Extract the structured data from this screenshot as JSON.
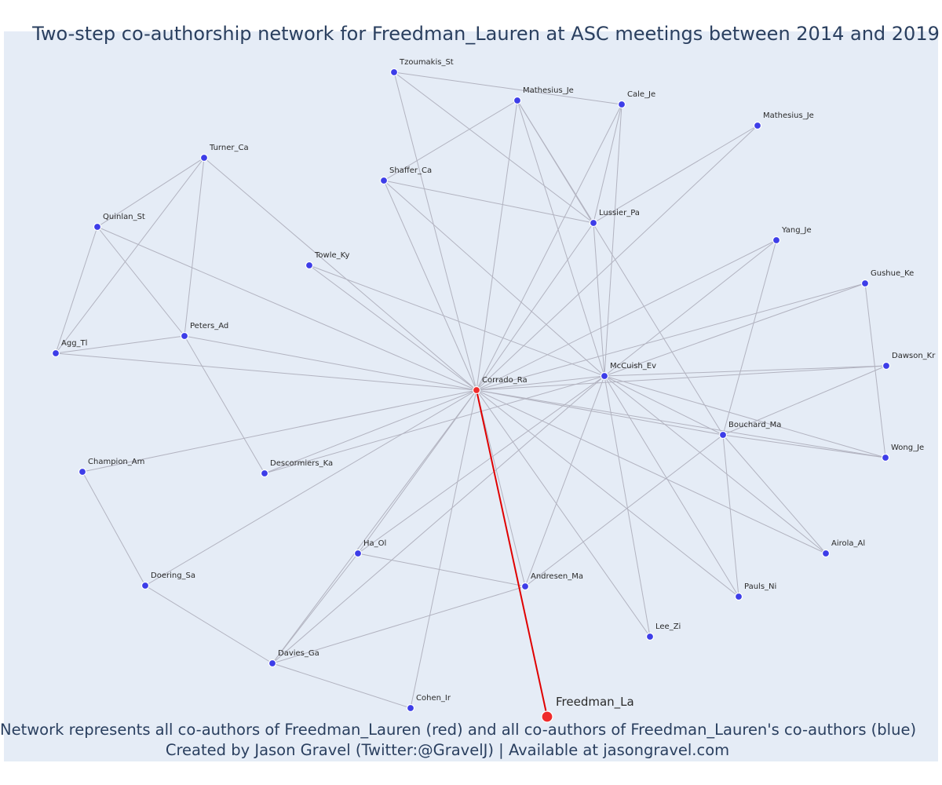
{
  "title": "Two-step co-authorship network for Freedman_Lauren at ASC meetings between 2014 and 2019",
  "caption_line1": "Network represents all co-authors of Freedman_Lauren (red) and all co-authors of Freedman_Lauren's co-authors (blue)",
  "caption_line2": "Created by Jason Gravel (Twitter:@GravelJ) | Available at jasongravel.com",
  "colors": {
    "background": "#e5ecf6",
    "edge": "#b2b3c0",
    "highlight_edge": "#e00000",
    "coauthor": "#ef2b2b",
    "second_step": "#3d3de8"
  },
  "legend": {
    "red": "co-authors of Freedman_Lauren",
    "blue": "co-authors of Freedman_Lauren's co-authors"
  },
  "nodes": [
    {
      "id": "Freedman_La",
      "label": "Freedman_La",
      "group": "focal"
    },
    {
      "id": "Corrado_Ra",
      "label": "Corrado_Ra",
      "group": "coauthor"
    },
    {
      "id": "McCuish_Ev",
      "label": "McCuish_Ev",
      "group": "second"
    },
    {
      "id": "Tzoumakis_St",
      "label": "Tzoumakis_St",
      "group": "second"
    },
    {
      "id": "Mathesius_Je1",
      "label": "Mathesius_Je",
      "group": "second"
    },
    {
      "id": "Cale_Je",
      "label": "Cale_Je",
      "group": "second"
    },
    {
      "id": "Mathesius_Je2",
      "label": "Mathesius_Je",
      "group": "second"
    },
    {
      "id": "Shaffer_Ca",
      "label": "Shaffer_Ca",
      "group": "second"
    },
    {
      "id": "Lussier_Pa",
      "label": "Lussier_Pa",
      "group": "second"
    },
    {
      "id": "Turner_Ca",
      "label": "Turner_Ca",
      "group": "second"
    },
    {
      "id": "Quinlan_St",
      "label": "Quinlan_St",
      "group": "second"
    },
    {
      "id": "Towle_Ky",
      "label": "Towle_Ky",
      "group": "second"
    },
    {
      "id": "Peters_Ad",
      "label": "Peters_Ad",
      "group": "second"
    },
    {
      "id": "Agg_Tl",
      "label": "Agg_Tl",
      "group": "second"
    },
    {
      "id": "Yang_Je",
      "label": "Yang_Je",
      "group": "second"
    },
    {
      "id": "Gushue_Ke",
      "label": "Gushue_Ke",
      "group": "second"
    },
    {
      "id": "Dawson_Kr",
      "label": "Dawson_Kr",
      "group": "second"
    },
    {
      "id": "Bouchard_Ma",
      "label": "Bouchard_Ma",
      "group": "second"
    },
    {
      "id": "Wong_Je",
      "label": "Wong_Je",
      "group": "second"
    },
    {
      "id": "Champion_Am",
      "label": "Champion_Am",
      "group": "second"
    },
    {
      "id": "Descormiers_Ka",
      "label": "Descormiers_Ka",
      "group": "second"
    },
    {
      "id": "Ha_Ol",
      "label": "Ha_Ol",
      "group": "second"
    },
    {
      "id": "Andresen_Ma",
      "label": "Andresen_Ma",
      "group": "second"
    },
    {
      "id": "Airola_Al",
      "label": "Airola_Al",
      "group": "second"
    },
    {
      "id": "Doering_Sa",
      "label": "Doering_Sa",
      "group": "second"
    },
    {
      "id": "Pauls_Ni",
      "label": "Pauls_Ni",
      "group": "second"
    },
    {
      "id": "Lee_Zi",
      "label": "Lee_Zi",
      "group": "second"
    },
    {
      "id": "Davies_Ga",
      "label": "Davies_Ga",
      "group": "second"
    },
    {
      "id": "Cohen_Ir",
      "label": "Cohen_Ir",
      "group": "second"
    }
  ],
  "edges": [
    [
      "Freedman_La",
      "Corrado_Ra",
      "highlight"
    ],
    [
      "Corrado_Ra",
      "Tzoumakis_St"
    ],
    [
      "Corrado_Ra",
      "Mathesius_Je1"
    ],
    [
      "Corrado_Ra",
      "Cale_Je"
    ],
    [
      "Corrado_Ra",
      "Mathesius_Je2"
    ],
    [
      "Corrado_Ra",
      "Shaffer_Ca"
    ],
    [
      "Corrado_Ra",
      "Lussier_Pa"
    ],
    [
      "Corrado_Ra",
      "Turner_Ca"
    ],
    [
      "Corrado_Ra",
      "Quinlan_St"
    ],
    [
      "Corrado_Ra",
      "Towle_Ky"
    ],
    [
      "Corrado_Ra",
      "Peters_Ad"
    ],
    [
      "Corrado_Ra",
      "Agg_Tl"
    ],
    [
      "Corrado_Ra",
      "Yang_Je"
    ],
    [
      "Corrado_Ra",
      "Gushue_Ke"
    ],
    [
      "Corrado_Ra",
      "Dawson_Kr"
    ],
    [
      "Corrado_Ra",
      "Bouchard_Ma"
    ],
    [
      "Corrado_Ra",
      "Wong_Je"
    ],
    [
      "Corrado_Ra",
      "Champion_Am"
    ],
    [
      "Corrado_Ra",
      "Descormiers_Ka"
    ],
    [
      "Corrado_Ra",
      "Ha_Ol"
    ],
    [
      "Corrado_Ra",
      "Andresen_Ma"
    ],
    [
      "Corrado_Ra",
      "Airola_Al"
    ],
    [
      "Corrado_Ra",
      "Doering_Sa"
    ],
    [
      "Corrado_Ra",
      "Pauls_Ni"
    ],
    [
      "Corrado_Ra",
      "Lee_Zi"
    ],
    [
      "Corrado_Ra",
      "Davies_Ga"
    ],
    [
      "Corrado_Ra",
      "Cohen_Ir"
    ],
    [
      "Corrado_Ra",
      "McCuish_Ev"
    ],
    [
      "McCuish_Ev",
      "Mathesius_Je1"
    ],
    [
      "McCuish_Ev",
      "Cale_Je"
    ],
    [
      "McCuish_Ev",
      "Shaffer_Ca"
    ],
    [
      "McCuish_Ev",
      "Lussier_Pa"
    ],
    [
      "McCuish_Ev",
      "Towle_Ky"
    ],
    [
      "McCuish_Ev",
      "Yang_Je"
    ],
    [
      "McCuish_Ev",
      "Gushue_Ke"
    ],
    [
      "McCuish_Ev",
      "Dawson_Kr"
    ],
    [
      "McCuish_Ev",
      "Bouchard_Ma"
    ],
    [
      "McCuish_Ev",
      "Wong_Je"
    ],
    [
      "McCuish_Ev",
      "Descormiers_Ka"
    ],
    [
      "McCuish_Ev",
      "Ha_Ol"
    ],
    [
      "McCuish_Ev",
      "Andresen_Ma"
    ],
    [
      "McCuish_Ev",
      "Airola_Al"
    ],
    [
      "McCuish_Ev",
      "Pauls_Ni"
    ],
    [
      "McCuish_Ev",
      "Lee_Zi"
    ],
    [
      "McCuish_Ev",
      "Davies_Ga"
    ],
    [
      "Tzoumakis_St",
      "Cale_Je"
    ],
    [
      "Tzoumakis_St",
      "Lussier_Pa"
    ],
    [
      "Mathesius_Je1",
      "Shaffer_Ca"
    ],
    [
      "Mathesius_Je1",
      "Lussier_Pa"
    ],
    [
      "Mathesius_Je1",
      "Bouchard_Ma"
    ],
    [
      "Cale_Je",
      "Lussier_Pa"
    ],
    [
      "Mathesius_Je2",
      "Lussier_Pa"
    ],
    [
      "Shaffer_Ca",
      "Lussier_Pa"
    ],
    [
      "Turner_Ca",
      "Quinlan_St"
    ],
    [
      "Turner_Ca",
      "Peters_Ad"
    ],
    [
      "Turner_Ca",
      "Agg_Tl"
    ],
    [
      "Quinlan_St",
      "Peters_Ad"
    ],
    [
      "Quinlan_St",
      "Agg_Tl"
    ],
    [
      "Peters_Ad",
      "Agg_Tl"
    ],
    [
      "Peters_Ad",
      "Descormiers_Ka"
    ],
    [
      "Yang_Je",
      "Bouchard_Ma"
    ],
    [
      "Gushue_Ke",
      "Wong_Je"
    ],
    [
      "Dawson_Kr",
      "Bouchard_Ma"
    ],
    [
      "Bouchard_Ma",
      "Wong_Je"
    ],
    [
      "Bouchard_Ma",
      "Airola_Al"
    ],
    [
      "Bouchard_Ma",
      "Pauls_Ni"
    ],
    [
      "Bouchard_Ma",
      "Andresen_Ma"
    ],
    [
      "Champion_Am",
      "Doering_Sa"
    ],
    [
      "Doering_Sa",
      "Davies_Ga"
    ],
    [
      "Ha_Ol",
      "Andresen_Ma"
    ],
    [
      "Ha_Ol",
      "Davies_Ga"
    ],
    [
      "Andresen_Ma",
      "Davies_Ga"
    ],
    [
      "Davies_Ga",
      "Cohen_Ir"
    ]
  ]
}
